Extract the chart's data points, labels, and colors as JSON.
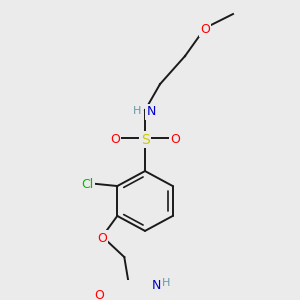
{
  "background_color": "#ebebeb",
  "bond_color": "#1a1a1a",
  "atom_colors": {
    "O": "#ff0000",
    "N": "#0000cc",
    "S": "#cccc00",
    "Cl": "#00bb00",
    "H_label": "#6699aa"
  },
  "lw": 1.4,
  "fontsize": 9
}
